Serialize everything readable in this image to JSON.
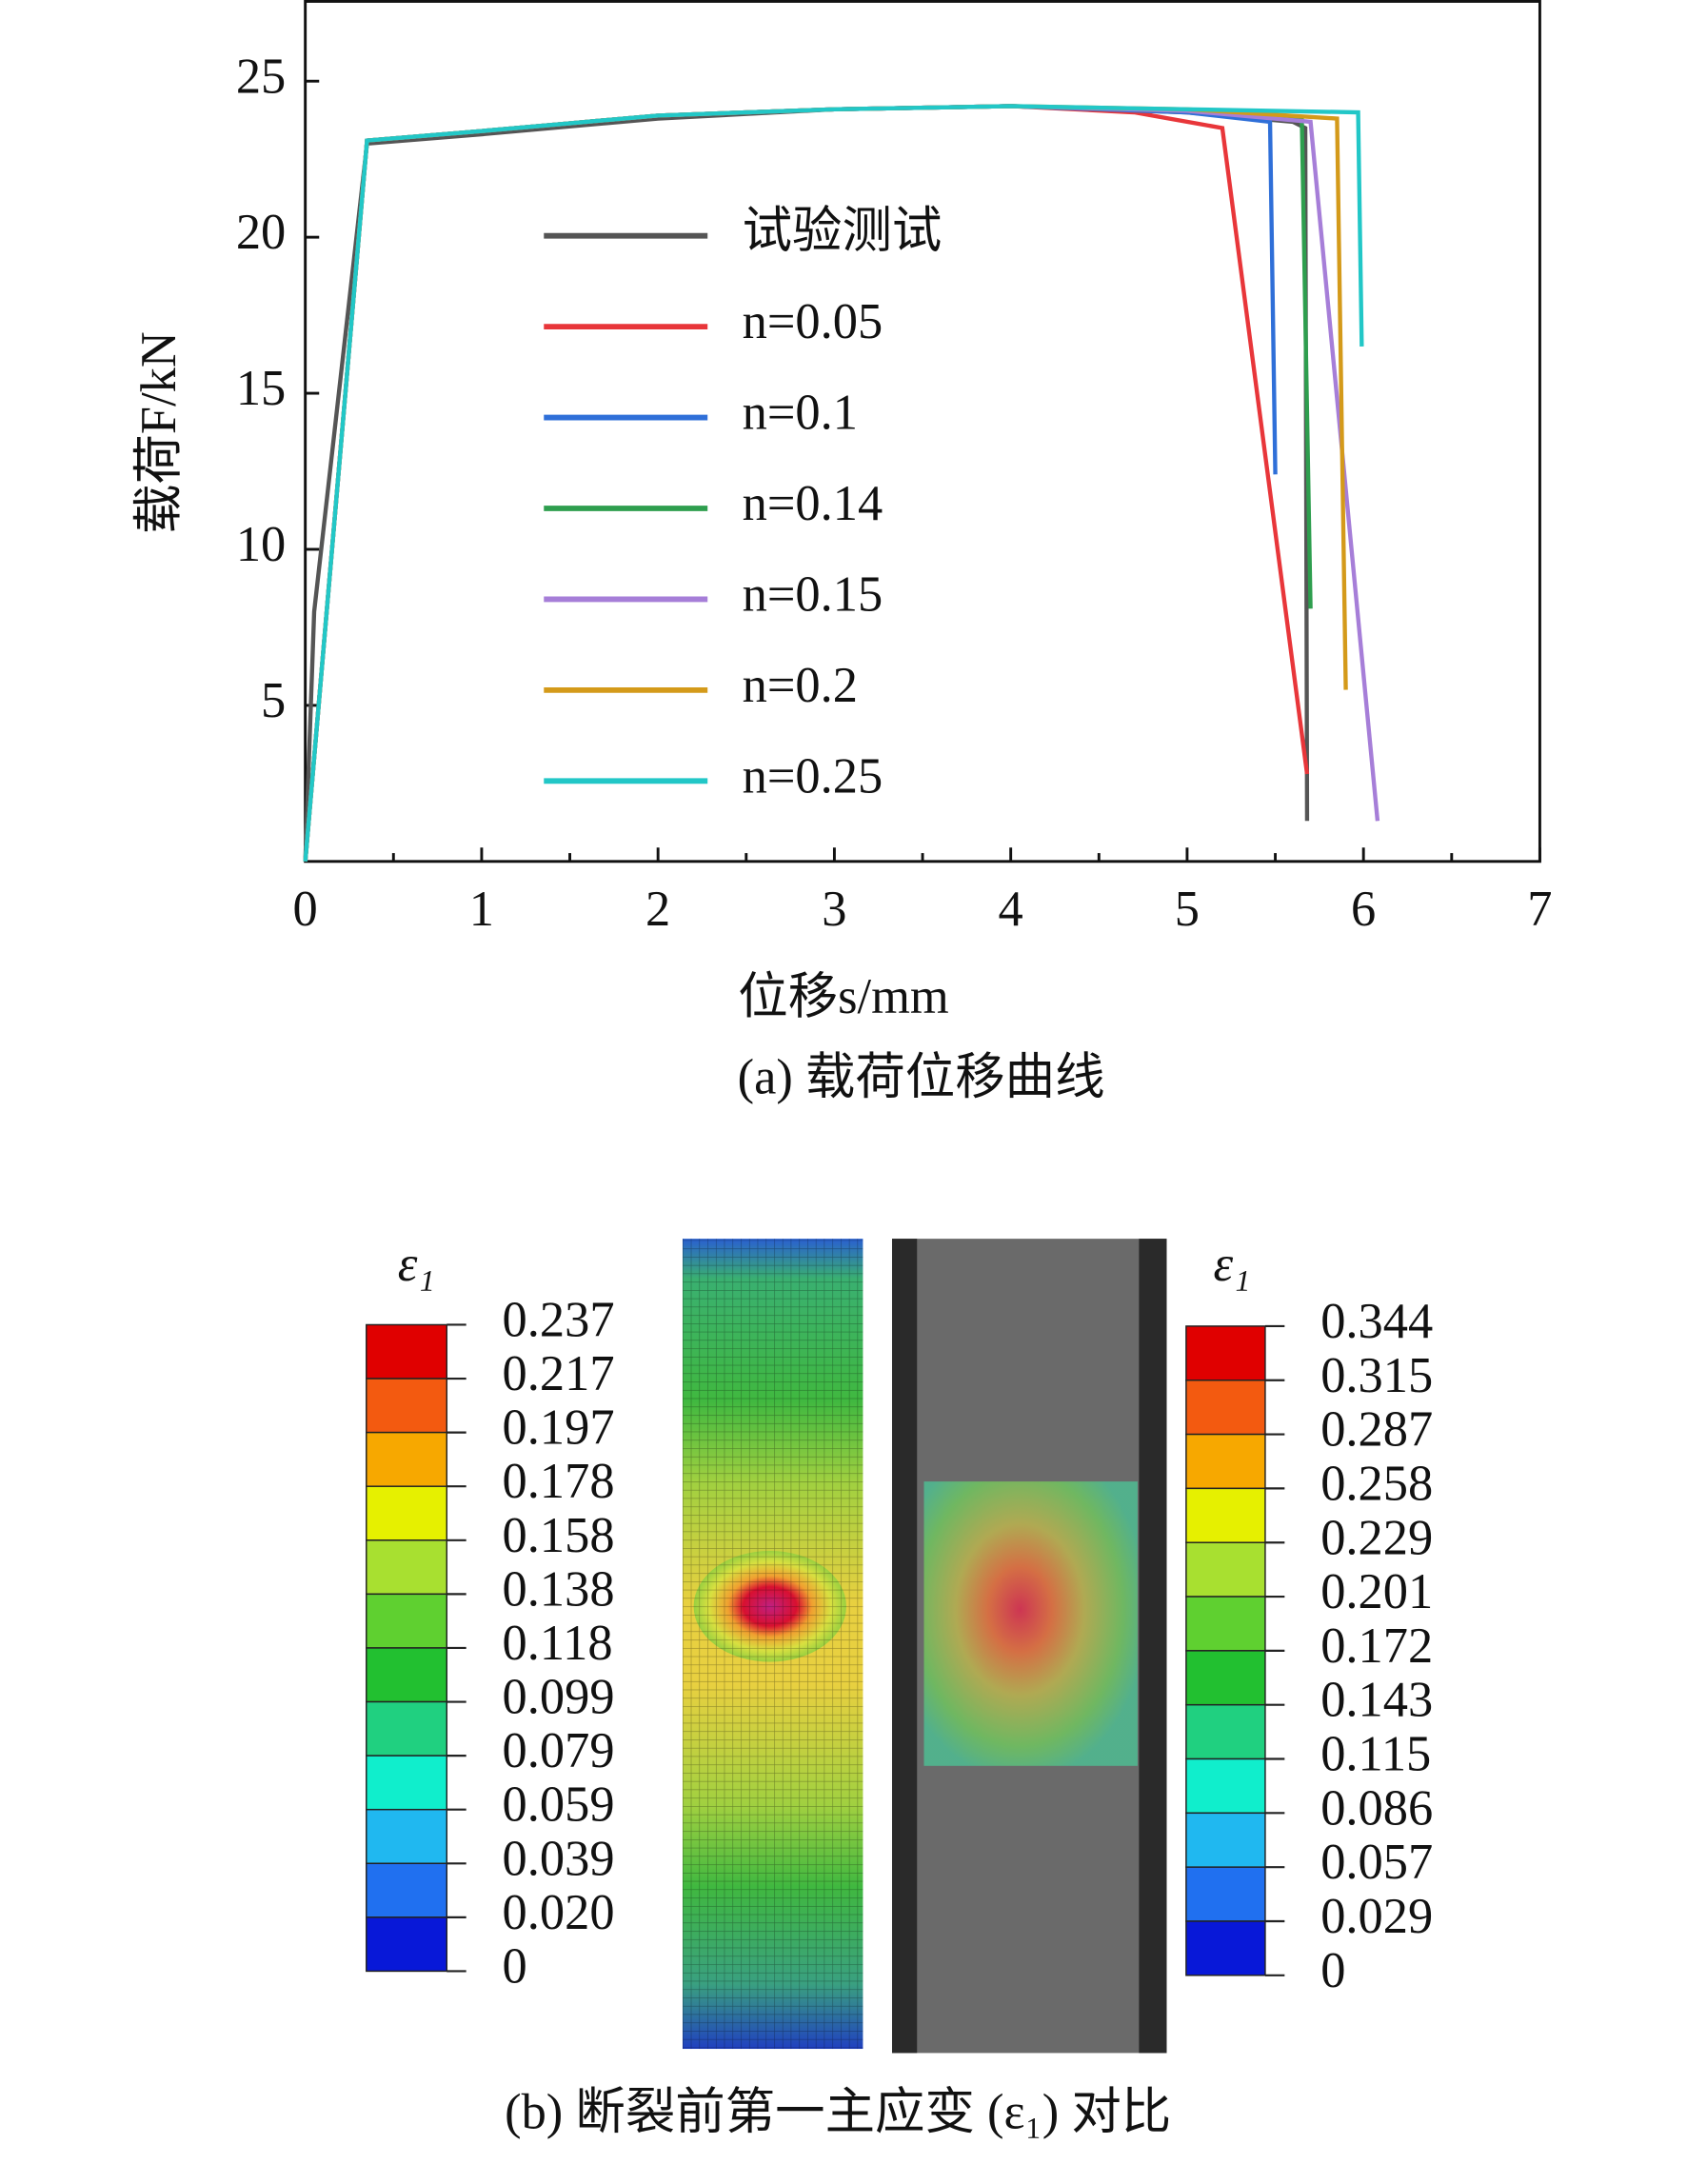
{
  "chart_data": {
    "type": "line",
    "xlabel": "位移s/mm",
    "ylabel": "载荷F/kN",
    "caption": "(a) 载荷位移曲线",
    "xlim": [
      0,
      7
    ],
    "xticks": [
      0,
      1,
      2,
      3,
      4,
      5,
      6,
      7
    ],
    "ylim": [
      0,
      27.6
    ],
    "yticks": [
      5,
      10,
      15,
      20,
      25
    ],
    "series": [
      {
        "name": "试验测试",
        "color": "#555555",
        "x": [
          0,
          0.05,
          0.35,
          1,
          2,
          3,
          4,
          5,
          5.6,
          5.67,
          5.68
        ],
        "values": [
          0,
          8,
          23,
          23.3,
          23.8,
          24.1,
          24.2,
          24,
          23.7,
          23.5,
          1.3
        ]
      },
      {
        "name": "n=0.05",
        "color": "#e8363a",
        "x": [
          0,
          0.35,
          1,
          2,
          3,
          4,
          4.7,
          5.2,
          5.68
        ],
        "values": [
          0,
          23.1,
          23.4,
          23.9,
          24.1,
          24.2,
          24,
          23.5,
          2.8
        ]
      },
      {
        "name": "n=0.1",
        "color": "#2f6fd8",
        "x": [
          0,
          0.35,
          1,
          2,
          3,
          4,
          5,
          5.47,
          5.5
        ],
        "values": [
          0,
          23.1,
          23.4,
          23.9,
          24.1,
          24.2,
          24,
          23.7,
          12.4
        ]
      },
      {
        "name": "n=0.14",
        "color": "#2e9e4e",
        "x": [
          0,
          0.35,
          1,
          2,
          3,
          4,
          5,
          5.65,
          5.7
        ],
        "values": [
          0,
          23.1,
          23.4,
          23.9,
          24.1,
          24.2,
          24.05,
          23.8,
          8.1
        ]
      },
      {
        "name": "n=0.15",
        "color": "#a67ed8",
        "x": [
          0,
          0.35,
          1,
          2,
          3,
          4,
          5,
          5.7,
          6.08
        ],
        "values": [
          0,
          23.1,
          23.4,
          23.9,
          24.1,
          24.2,
          24.05,
          23.7,
          1.3
        ]
      },
      {
        "name": "n=0.2",
        "color": "#d49a1a",
        "x": [
          0,
          0.35,
          1,
          2,
          3,
          4,
          5,
          5.85,
          5.9
        ],
        "values": [
          0,
          23.1,
          23.4,
          23.9,
          24.1,
          24.2,
          24.1,
          23.8,
          5.5
        ]
      },
      {
        "name": "n=0.25",
        "color": "#22c7c7",
        "x": [
          0,
          0.35,
          1,
          2,
          3,
          4,
          5,
          5.97,
          5.99
        ],
        "values": [
          0,
          23.1,
          23.4,
          23.9,
          24.1,
          24.2,
          24.1,
          24,
          16.5
        ]
      }
    ]
  },
  "figure_b": {
    "caption": "(b) 断裂前第一主应变 (ε₁) 对比",
    "colorbars": [
      {
        "title": "ε₁",
        "labels": [
          "0.237",
          "0.217",
          "0.197",
          "0.178",
          "0.158",
          "0.138",
          "0.118",
          "0.099",
          "0.079",
          "0.059",
          "0.039",
          "0.020",
          "0"
        ]
      },
      {
        "title": "ε₁",
        "labels": [
          "0.344",
          "0.315",
          "0.287",
          "0.258",
          "0.229",
          "0.201",
          "0.172",
          "0.143",
          "0.115",
          "0.086",
          "0.057",
          "0.029",
          "0"
        ]
      }
    ],
    "colors": [
      "#e00000",
      "#f35a10",
      "#f7a800",
      "#e6f000",
      "#a8e030",
      "#5fd030",
      "#22c030",
      "#20d080",
      "#10eecc",
      "#20b8f0",
      "#2070f0",
      "#0818d8"
    ]
  }
}
